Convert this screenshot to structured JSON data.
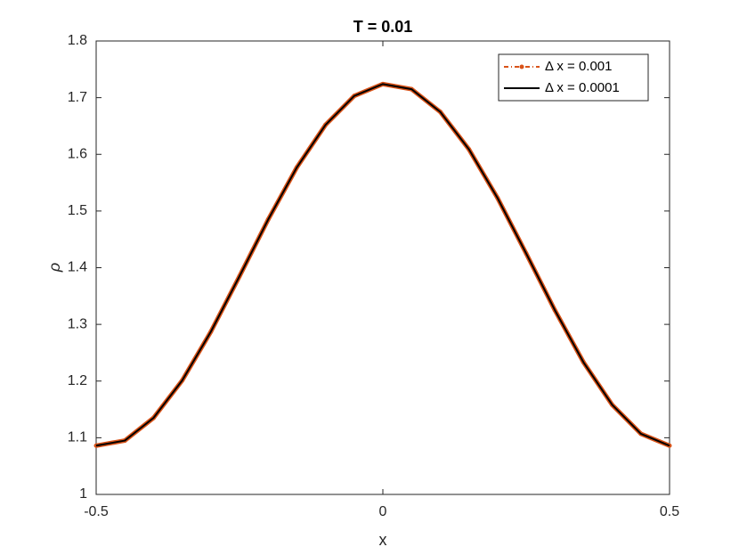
{
  "chart_data": {
    "type": "line",
    "title": "T = 0.01",
    "xlabel": "x",
    "ylabel": "ρ",
    "x": [
      -0.5,
      -0.45,
      -0.4,
      -0.35,
      -0.3,
      -0.25,
      -0.2,
      -0.15,
      -0.1,
      -0.05,
      0,
      0.05,
      0.1,
      0.15,
      0.2,
      0.25,
      0.3,
      0.35,
      0.4,
      0.45,
      0.5
    ],
    "series": [
      {
        "name": "Δ x = 0.001",
        "color": "#d95319",
        "values": [
          1.086,
          1.095,
          1.135,
          1.201,
          1.287,
          1.385,
          1.485,
          1.577,
          1.652,
          1.703,
          1.724,
          1.715,
          1.675,
          1.609,
          1.523,
          1.425,
          1.325,
          1.233,
          1.158,
          1.107,
          1.086
        ]
      },
      {
        "name": "Δ x = 0.0001",
        "color": "#000000",
        "values": [
          1.086,
          1.095,
          1.135,
          1.201,
          1.287,
          1.385,
          1.485,
          1.577,
          1.652,
          1.703,
          1.724,
          1.715,
          1.675,
          1.609,
          1.523,
          1.425,
          1.325,
          1.233,
          1.158,
          1.107,
          1.086
        ]
      }
    ],
    "xlim": [
      -0.5,
      0.5
    ],
    "xticks": [
      -0.5,
      0,
      0.5
    ],
    "ylim": [
      1,
      1.8
    ],
    "yticks": [
      1,
      1.1,
      1.2,
      1.3,
      1.4,
      1.5,
      1.6,
      1.7,
      1.8
    ],
    "legend": "top-right",
    "grid": false
  }
}
